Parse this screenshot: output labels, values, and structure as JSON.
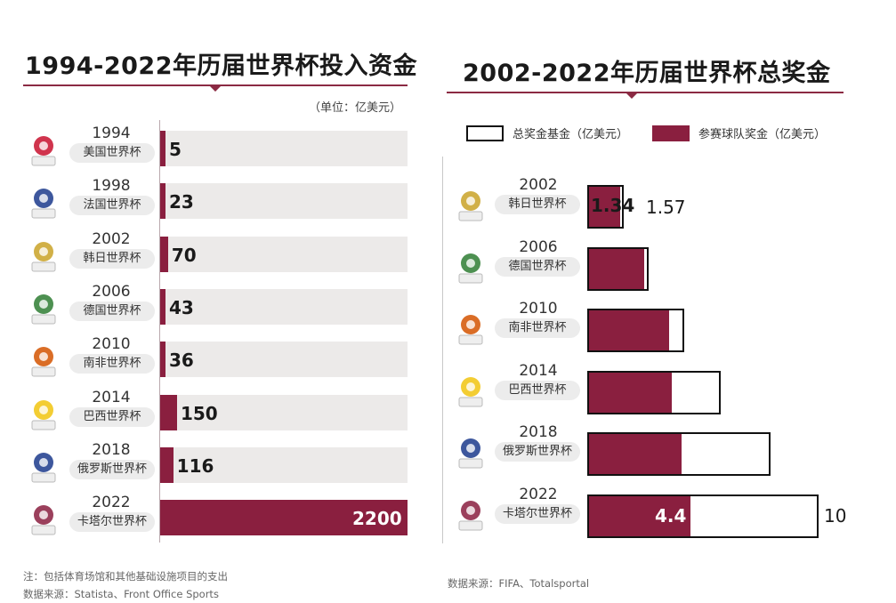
{
  "chart_data": [
    {
      "type": "bar",
      "title": "1994-2022年历届世界杯投入资金",
      "unit_label": "（单位：亿美元）",
      "categories": [
        "1994",
        "1998",
        "2002",
        "2006",
        "2010",
        "2014",
        "2018",
        "2022"
      ],
      "host_names": [
        "美国世界杯",
        "法国世界杯",
        "韩日世界杯",
        "德国世界杯",
        "南非世界杯",
        "巴西世界杯",
        "俄罗斯世界杯",
        "卡塔尔世界杯"
      ],
      "values": [
        5,
        23,
        70,
        43,
        36,
        150,
        116,
        2200
      ],
      "value_labels": [
        "5",
        "23",
        "70",
        "43",
        "36",
        "150",
        "116",
        "2200"
      ],
      "xlim": [
        0,
        2200
      ],
      "orientation": "horizontal",
      "note": "注：包括体育场馆和其他基础设施项目的支出",
      "source": "数据来源：Statista、Front Office Sports"
    },
    {
      "type": "bar",
      "title": "2002-2022年历届世界杯总奖金",
      "categories": [
        "2002",
        "2006",
        "2010",
        "2014",
        "2018",
        "2022"
      ],
      "host_names": [
        "韩日世界杯",
        "德国世界杯",
        "南非世界杯",
        "巴西世界杯",
        "俄罗斯世界杯",
        "卡塔尔世界杯"
      ],
      "series": [
        {
          "name": "总奖金基金（亿美元）",
          "values": [
            1.57,
            2.66,
            4.2,
            5.76,
            7.91,
            10
          ]
        },
        {
          "name": "参赛球队奖金（亿美元）",
          "values": [
            1.34,
            2.4,
            3.48,
            3.58,
            4.0,
            4.4
          ]
        }
      ],
      "value_labels": {
        "2002_team": "1.34",
        "2002_total": "1.57",
        "2022_team": "4.4",
        "2022_total": "10"
      },
      "xlim": [
        0,
        10
      ],
      "orientation": "horizontal",
      "source": "数据来源：FIFA、Totalsportal"
    }
  ],
  "colors": {
    "accent": "#8a1f3f",
    "track": "#eceae9",
    "rule": "#8b2a43"
  },
  "logo_icons": [
    "usa94-logo",
    "france98-logo",
    "korea-japan02-logo",
    "germany06-logo",
    "south-africa10-logo",
    "brazil14-logo",
    "russia18-logo",
    "qatar22-logo"
  ]
}
